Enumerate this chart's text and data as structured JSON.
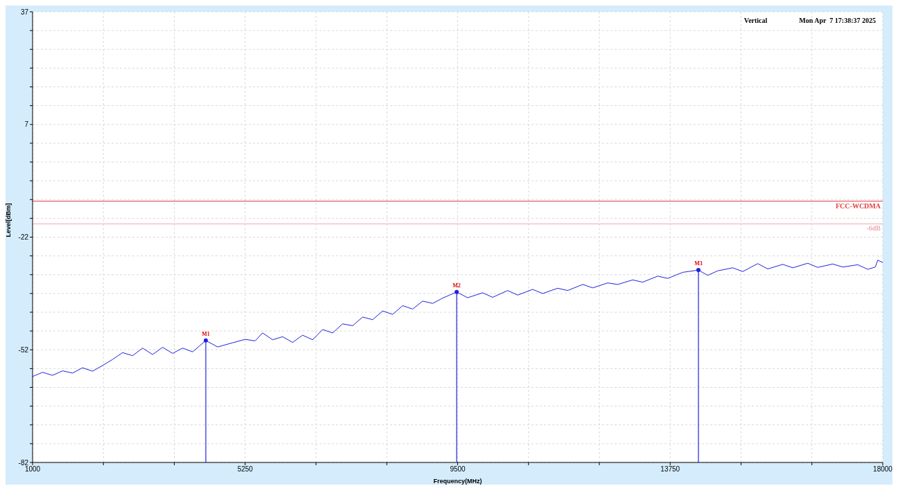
{
  "chart_data": {
    "type": "line",
    "xlabel": "Frequency(MHz)",
    "ylabel": "Level[dBm]",
    "annotations": [
      "Vertical",
      "Mon Apr  7 17:38:37 2025",
      {
        "text": "M1",
        "x": 4464,
        "y": -49.8
      },
      {
        "text": "M2",
        "x": 9480,
        "y": -37.0
      },
      {
        "text": "M3",
        "x": 14314,
        "y": -31.2
      }
    ],
    "xlim": [
      1000,
      18000
    ],
    "xticks": [
      1000,
      {
        "value": 2416.67,
        "label": null
      },
      {
        "value": 3833.33,
        "label": null
      },
      5250,
      {
        "value": 6666.67,
        "label": null
      },
      {
        "value": 8083.33,
        "label": null
      },
      9500,
      {
        "value": 10916.67,
        "label": null
      },
      {
        "value": 12333.33,
        "label": null
      },
      13750,
      {
        "value": 15166.67,
        "label": null
      },
      {
        "value": 16583.33,
        "label": null
      },
      18000
    ],
    "ylim": [
      -82,
      37
    ],
    "yticks": [
      -82,
      {
        "value": -77.04,
        "label": null
      },
      {
        "value": -72.08,
        "label": null
      },
      {
        "value": -67.13,
        "label": null
      },
      {
        "value": -62.17,
        "label": null
      },
      {
        "value": -57.21,
        "label": null
      },
      {
        "value": -52.25,
        "label": "-52"
      },
      {
        "value": -47.29,
        "label": null
      },
      {
        "value": -42.33,
        "label": null
      },
      {
        "value": -37.38,
        "label": null
      },
      {
        "value": -32.42,
        "label": null
      },
      {
        "value": -27.46,
        "label": null
      },
      {
        "value": -22.5,
        "label": "-22"
      },
      {
        "value": -17.54,
        "label": null
      },
      {
        "value": -12.58,
        "label": null
      },
      {
        "value": -7.63,
        "label": null
      },
      {
        "value": -2.67,
        "label": null
      },
      {
        "value": 2.29,
        "label": null
      },
      {
        "value": 7.25,
        "label": "7"
      },
      {
        "value": 12.21,
        "label": null
      },
      {
        "value": 17.17,
        "label": null
      },
      {
        "value": 22.13,
        "label": null
      },
      {
        "value": 27.08,
        "label": null
      },
      {
        "value": 32.04,
        "label": null
      },
      37
    ],
    "grid": true,
    "legend": false,
    "marker": "none",
    "line_style": "solid",
    "ref_lines": [
      {
        "axis": "y",
        "value": -13,
        "label": "FCC-WCDMA",
        "color": "#e04040",
        "line_style": "solid"
      },
      {
        "axis": "y",
        "value": -19,
        "label": "-6dB",
        "color": "#f0a8b0",
        "line_style": "solid"
      }
    ],
    "series": [
      {
        "color": "#2020e0",
        "x": [
          1000,
          1200,
          1400,
          1600,
          1800,
          2000,
          2200,
          2400,
          2600,
          2800,
          3000,
          3200,
          3400,
          3600,
          3800,
          4000,
          4200,
          4464,
          4700,
          5000,
          5250,
          5450,
          5600,
          5800,
          6000,
          6200,
          6400,
          6600,
          6800,
          7000,
          7200,
          7400,
          7600,
          7800,
          8000,
          8200,
          8400,
          8600,
          8800,
          9000,
          9200,
          9480,
          9700,
          10000,
          10200,
          10500,
          10700,
          11000,
          11200,
          11500,
          11700,
          12000,
          12200,
          12500,
          12700,
          13000,
          13200,
          13500,
          13700,
          14000,
          14314,
          14500,
          14700,
          15000,
          15200,
          15500,
          15700,
          16000,
          16200,
          16500,
          16700,
          17000,
          17200,
          17500,
          17700,
          17850,
          17900,
          18000
        ],
        "values": [
          -59.3,
          -58.2,
          -59.0,
          -57.8,
          -58.4,
          -57.0,
          -57.9,
          -56.4,
          -54.8,
          -53.0,
          -53.8,
          -51.8,
          -53.5,
          -51.6,
          -53.2,
          -51.8,
          -52.8,
          -49.8,
          -51.5,
          -50.4,
          -49.5,
          -49.9,
          -47.8,
          -49.6,
          -48.8,
          -50.3,
          -48.4,
          -49.6,
          -46.9,
          -47.8,
          -45.4,
          -45.9,
          -43.6,
          -44.3,
          -42.0,
          -42.9,
          -40.6,
          -41.5,
          -39.4,
          -40.0,
          -38.6,
          -37.0,
          -38.5,
          -37.2,
          -38.4,
          -36.6,
          -37.8,
          -36.3,
          -37.4,
          -36.0,
          -36.6,
          -35.0,
          -35.9,
          -34.6,
          -35.0,
          -33.8,
          -34.4,
          -32.8,
          -33.4,
          -31.8,
          -31.2,
          -32.6,
          -31.4,
          -30.6,
          -31.6,
          -29.5,
          -30.9,
          -29.7,
          -30.6,
          -29.4,
          -30.5,
          -29.6,
          -30.4,
          -29.8,
          -31.0,
          -30.4,
          -28.6,
          -29.2
        ]
      },
      {
        "type": "lollipop",
        "marker": "circle",
        "color": "#2020e0",
        "x": [
          4464,
          9480,
          14314
        ],
        "values": [
          -49.8,
          -37.0,
          -31.2
        ]
      }
    ]
  }
}
